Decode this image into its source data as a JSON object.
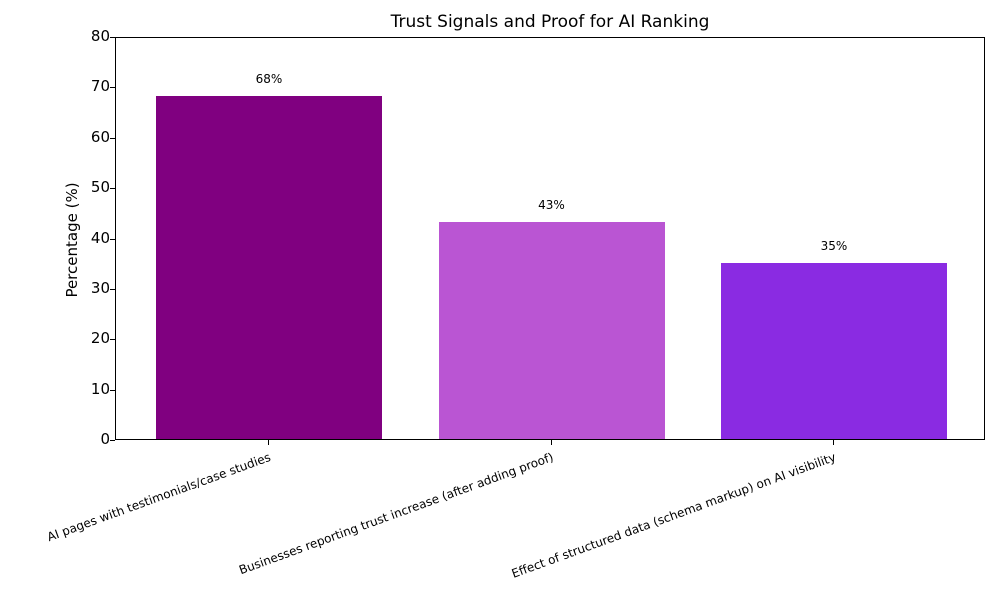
{
  "chart_data": {
    "type": "bar",
    "title": "Trust Signals and Proof for AI Ranking",
    "xlabel": "",
    "ylabel": "Percentage (%)",
    "ylim": [
      0,
      80
    ],
    "yticks": [
      0,
      10,
      20,
      30,
      40,
      50,
      60,
      70,
      80
    ],
    "categories": [
      "AI pages with testimonials/case studies",
      "Businesses reporting trust increase (after adding proof)",
      "Effect of structured data (schema markup) on AI visibility"
    ],
    "values": [
      68,
      43,
      35
    ],
    "value_labels": [
      "68%",
      "43%",
      "35%"
    ],
    "colors": [
      "#800080",
      "#ba55d3",
      "#8a2be2"
    ],
    "grid": false,
    "legend": null
  }
}
